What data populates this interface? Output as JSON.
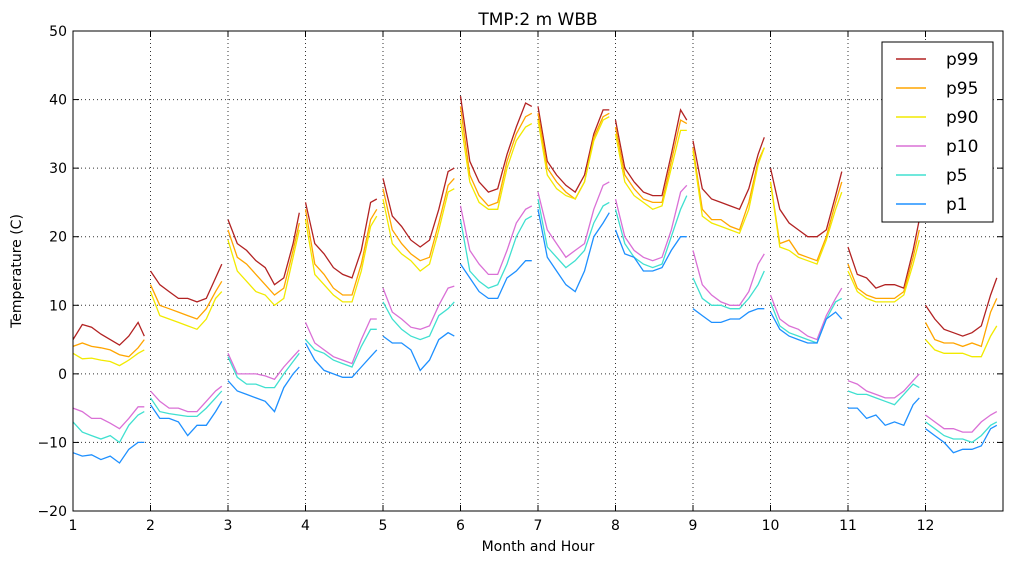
{
  "chart_data": {
    "type": "line",
    "title": "TMP:2 m WBB",
    "xlabel": "Month and Hour",
    "ylabel": "Temperature (C)",
    "xlim": [
      1,
      13
    ],
    "ylim": [
      -20,
      50
    ],
    "xticks": [
      "1",
      "2",
      "3",
      "4",
      "5",
      "6",
      "7",
      "8",
      "9",
      "10",
      "11",
      "12"
    ],
    "yticks": [
      -20,
      -10,
      0,
      10,
      20,
      30,
      40,
      50
    ],
    "ytick_labels": [
      "−20",
      "−10",
      "0",
      "10",
      "20",
      "30",
      "40",
      "50"
    ],
    "grid": true,
    "legend_position": "top-right",
    "hours": [
      0,
      3,
      6,
      9,
      12,
      15,
      18,
      21,
      23
    ],
    "series": [
      {
        "name": "p99",
        "color": "#b22222",
        "months": [
          [
            5,
            7.2,
            6.8,
            5.8,
            5.0,
            4.2,
            5.5,
            7.5,
            5.5
          ],
          [
            15,
            13,
            12,
            11,
            11,
            10.5,
            11,
            14,
            16
          ],
          [
            22.5,
            19,
            18,
            16.5,
            15.5,
            13,
            14,
            19,
            23.5
          ],
          [
            25,
            19,
            17.5,
            15.5,
            14.5,
            14,
            18,
            25,
            25.5
          ],
          [
            28.5,
            23,
            21.5,
            19.5,
            18.5,
            19.5,
            24,
            29.5,
            30
          ],
          [
            40.5,
            31,
            28,
            26.5,
            27,
            32,
            36,
            39.5,
            39
          ],
          [
            39,
            31,
            29,
            27.5,
            26.5,
            29,
            35,
            38.5,
            38.5
          ],
          [
            37,
            30,
            28,
            26.5,
            26,
            26,
            32,
            38.5,
            37
          ],
          [
            34,
            27,
            25.5,
            25,
            24.5,
            24,
            27,
            32,
            34.5
          ],
          [
            30,
            24,
            22,
            21,
            20,
            20,
            21,
            26,
            29.5
          ],
          [
            18.5,
            14.5,
            14,
            12.5,
            13,
            13,
            12.5,
            18,
            22.5
          ],
          [
            10,
            8,
            6.5,
            6,
            5.5,
            6,
            7,
            11.5,
            14
          ]
        ]
      },
      {
        "name": "p95",
        "color": "#ffa500",
        "months": [
          [
            4,
            4.5,
            4.0,
            3.8,
            3.5,
            2.8,
            2.5,
            3.8,
            5.0
          ],
          [
            13,
            10,
            9.5,
            9,
            8.5,
            8,
            9.5,
            12,
            13.5
          ],
          [
            21,
            17,
            16,
            14.5,
            13,
            11.5,
            12.5,
            18,
            22
          ],
          [
            24,
            16,
            14.5,
            12.5,
            11.5,
            11.5,
            16,
            22.5,
            24
          ],
          [
            27,
            21,
            19,
            17.5,
            16.5,
            17,
            22,
            27.5,
            28.5
          ],
          [
            39,
            29,
            26,
            24.5,
            25,
            31,
            35,
            37.5,
            38
          ],
          [
            38,
            30,
            28,
            26.5,
            25.5,
            28,
            34.5,
            37.5,
            38
          ],
          [
            36,
            29,
            27,
            25.5,
            25,
            25,
            31,
            37,
            36.5
          ],
          [
            33,
            24,
            22.5,
            22.5,
            21.5,
            21,
            25,
            31,
            33
          ],
          [
            28,
            19,
            19.5,
            17.5,
            17,
            16.5,
            20,
            25,
            28
          ],
          [
            16,
            12.5,
            11.5,
            11,
            11,
            11,
            12,
            17,
            21
          ],
          [
            7.5,
            5,
            4.5,
            4.5,
            4,
            4.5,
            4,
            9,
            11
          ]
        ]
      },
      {
        "name": "p90",
        "color": "#f2ea00",
        "months": [
          [
            3,
            2.2,
            2.3,
            2.0,
            1.8,
            1.2,
            2.0,
            3.0,
            3.5
          ],
          [
            12,
            8.5,
            8,
            7.5,
            7,
            6.5,
            8,
            11,
            12
          ],
          [
            19.5,
            15,
            13.5,
            12,
            11.5,
            10,
            11,
            17,
            21
          ],
          [
            22.5,
            14.5,
            13,
            11.5,
            10.5,
            10.5,
            15,
            21.5,
            23
          ],
          [
            25.5,
            19,
            17.5,
            16.5,
            15,
            16,
            21,
            26.5,
            27
          ],
          [
            37,
            28,
            25,
            24,
            24,
            30,
            34,
            36,
            36.5
          ],
          [
            37,
            29,
            27,
            26,
            25.5,
            28,
            34,
            37,
            37.5
          ],
          [
            35,
            28,
            26,
            25,
            24,
            24.5,
            30,
            35.5,
            35.5
          ],
          [
            32.5,
            23,
            22,
            21.5,
            21,
            20.5,
            24,
            30.5,
            33
          ],
          [
            28,
            18.5,
            18,
            17,
            16.5,
            16,
            19.5,
            24,
            26.5
          ],
          [
            15,
            12,
            11,
            10.5,
            10.5,
            10.5,
            11.5,
            16,
            19.5
          ],
          [
            5,
            3.5,
            3,
            3,
            3,
            2.5,
            2.5,
            5.5,
            7
          ]
        ]
      },
      {
        "name": "p10",
        "color": "#da70d6",
        "months": [
          [
            -5,
            -5.5,
            -6.5,
            -6.5,
            -7.2,
            -8,
            -6.5,
            -4.8,
            -4.8
          ],
          [
            -2.5,
            -4,
            -5,
            -5,
            -5.5,
            -5.5,
            -4,
            -2.5,
            -1.8
          ],
          [
            3,
            0,
            0,
            0,
            -0.3,
            -0.8,
            1,
            2.5,
            3.5
          ],
          [
            7.5,
            4.5,
            3.5,
            2.5,
            2,
            1.5,
            5,
            8,
            8
          ],
          [
            12.5,
            9,
            8,
            6.8,
            6.5,
            7,
            10,
            12.5,
            12.8
          ],
          [
            24.5,
            18,
            16,
            14.5,
            14.5,
            18,
            22,
            24,
            24.5
          ],
          [
            26.5,
            21,
            19,
            17,
            18,
            19,
            24,
            27.5,
            28
          ],
          [
            25.5,
            20,
            18,
            17,
            16.5,
            17,
            21,
            26.5,
            27.5
          ],
          [
            18,
            13,
            11.5,
            10.5,
            10,
            10,
            12,
            16,
            17.5
          ],
          [
            11.5,
            8,
            7,
            6.5,
            5.5,
            5,
            8.5,
            11,
            12.5
          ],
          [
            -1,
            -1.5,
            -2.5,
            -3,
            -3.5,
            -3.5,
            -2.5,
            -1,
            0
          ],
          [
            -6,
            -7,
            -8,
            -8,
            -8.5,
            -8.5,
            -7,
            -6,
            -5.5
          ]
        ]
      },
      {
        "name": "p5",
        "color": "#40e0d0",
        "months": [
          [
            -7,
            -8.5,
            -9,
            -9.5,
            -9,
            -10,
            -7.5,
            -6,
            -5.5
          ],
          [
            -3.5,
            -5.5,
            -5.8,
            -6,
            -6.2,
            -6.2,
            -5,
            -3.5,
            -2.5
          ],
          [
            2.5,
            -0.5,
            -1.5,
            -1.5,
            -2,
            -2,
            0,
            1.8,
            3
          ],
          [
            5,
            3.5,
            3,
            2,
            1.5,
            1,
            4,
            6.5,
            6.5
          ],
          [
            10.5,
            8,
            6.5,
            5.5,
            5,
            5.5,
            8.5,
            9.5,
            10.5
          ],
          [
            22.5,
            15,
            13.5,
            12.5,
            13,
            16,
            20,
            22.5,
            23
          ],
          [
            25.5,
            18.5,
            17,
            15.5,
            16.5,
            18,
            22,
            24.5,
            25
          ],
          [
            24,
            19,
            17,
            16,
            15.5,
            16,
            20,
            24,
            26
          ],
          [
            14,
            11,
            10,
            10,
            9.5,
            9.5,
            11,
            13,
            15
          ],
          [
            10.5,
            7,
            6,
            5.5,
            5,
            4.5,
            8,
            10.5,
            11
          ],
          [
            -2.5,
            -3,
            -3,
            -3.5,
            -4,
            -4.5,
            -3,
            -1.5,
            -2
          ],
          [
            -7,
            -8,
            -9,
            -9.5,
            -9.5,
            -10,
            -9,
            -7.5,
            -7
          ]
        ]
      },
      {
        "name": "p1",
        "color": "#1e90ff",
        "months": [
          [
            -11.5,
            -12,
            -11.8,
            -12.5,
            -12,
            -13,
            -11,
            -10,
            -10
          ],
          [
            -4.5,
            -6.5,
            -6.5,
            -7,
            -9,
            -7.5,
            -7.5,
            -5.5,
            -4
          ],
          [
            -1,
            -2.5,
            -3,
            -3.5,
            -4,
            -5.5,
            -2,
            0,
            1
          ],
          [
            4.5,
            2,
            0.5,
            0,
            -0.5,
            -0.5,
            1,
            2.5,
            3.5
          ],
          [
            5.5,
            4.5,
            4.5,
            3.5,
            0.5,
            2,
            5,
            6,
            5.5
          ],
          [
            16,
            14,
            12,
            11,
            11,
            14,
            15,
            16.5,
            16.5
          ],
          [
            24,
            17,
            15,
            13,
            12,
            15,
            20,
            22,
            23.5
          ],
          [
            21,
            17.5,
            17,
            15,
            15,
            15.5,
            18,
            20,
            20
          ],
          [
            9.5,
            8.5,
            7.5,
            7.5,
            8,
            8,
            9,
            9.5,
            9.5
          ],
          [
            9,
            6.5,
            5.5,
            5,
            4.5,
            4.5,
            8,
            9,
            8
          ],
          [
            -5,
            -5,
            -6.5,
            -6,
            -7.5,
            -7,
            -7.5,
            -4.5,
            -3.5
          ],
          [
            -8,
            -9,
            -10,
            -11.5,
            -11,
            -11,
            -10.5,
            -8,
            -7.5
          ]
        ]
      }
    ]
  }
}
